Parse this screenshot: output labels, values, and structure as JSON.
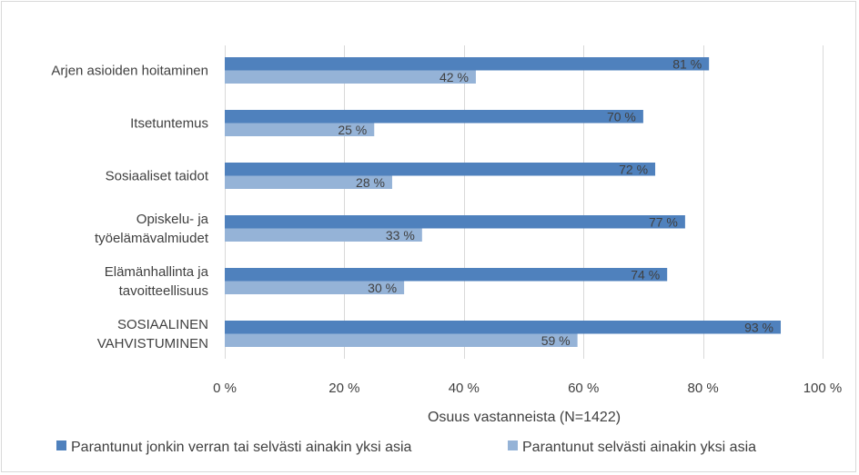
{
  "chart_data": {
    "type": "bar",
    "orientation": "horizontal",
    "categories": [
      [
        "Arjen asioiden hoitaminen"
      ],
      [
        "Itsetuntemus"
      ],
      [
        "Sosiaaliset taidot"
      ],
      [
        "Opiskelu- ja",
        "työelämävalmiudet"
      ],
      [
        "Elämänhallinta ja",
        "tavoitteellisuus"
      ],
      [
        "SOSIAALINEN",
        "VAHVISTUMINEN"
      ]
    ],
    "series": [
      {
        "name": "Parantunut jonkin verran tai selvästi ainakin yksi asia",
        "color": "#4f81bd",
        "values": [
          81,
          70,
          72,
          77,
          74,
          93
        ],
        "labels": [
          "81 %",
          "70 %",
          "72 %",
          "77 %",
          "74 %",
          "93 %"
        ]
      },
      {
        "name": "Parantunut selvästi ainakin yksi asia",
        "color": "#95b3d7",
        "values": [
          42,
          25,
          28,
          33,
          30,
          59
        ],
        "labels": [
          "42 %",
          "25 %",
          "28 %",
          "33 %",
          "30 %",
          "59 %"
        ]
      }
    ],
    "xlim": [
      0,
      100
    ],
    "xticks": [
      0,
      20,
      40,
      60,
      80,
      100
    ],
    "xtick_labels": [
      "0 %",
      "20 %",
      "40 %",
      "60 %",
      "80 %",
      "100 %"
    ],
    "xlabel": "Osuus vastanneista (N=1422)",
    "grid": true,
    "legend_position": "bottom"
  }
}
